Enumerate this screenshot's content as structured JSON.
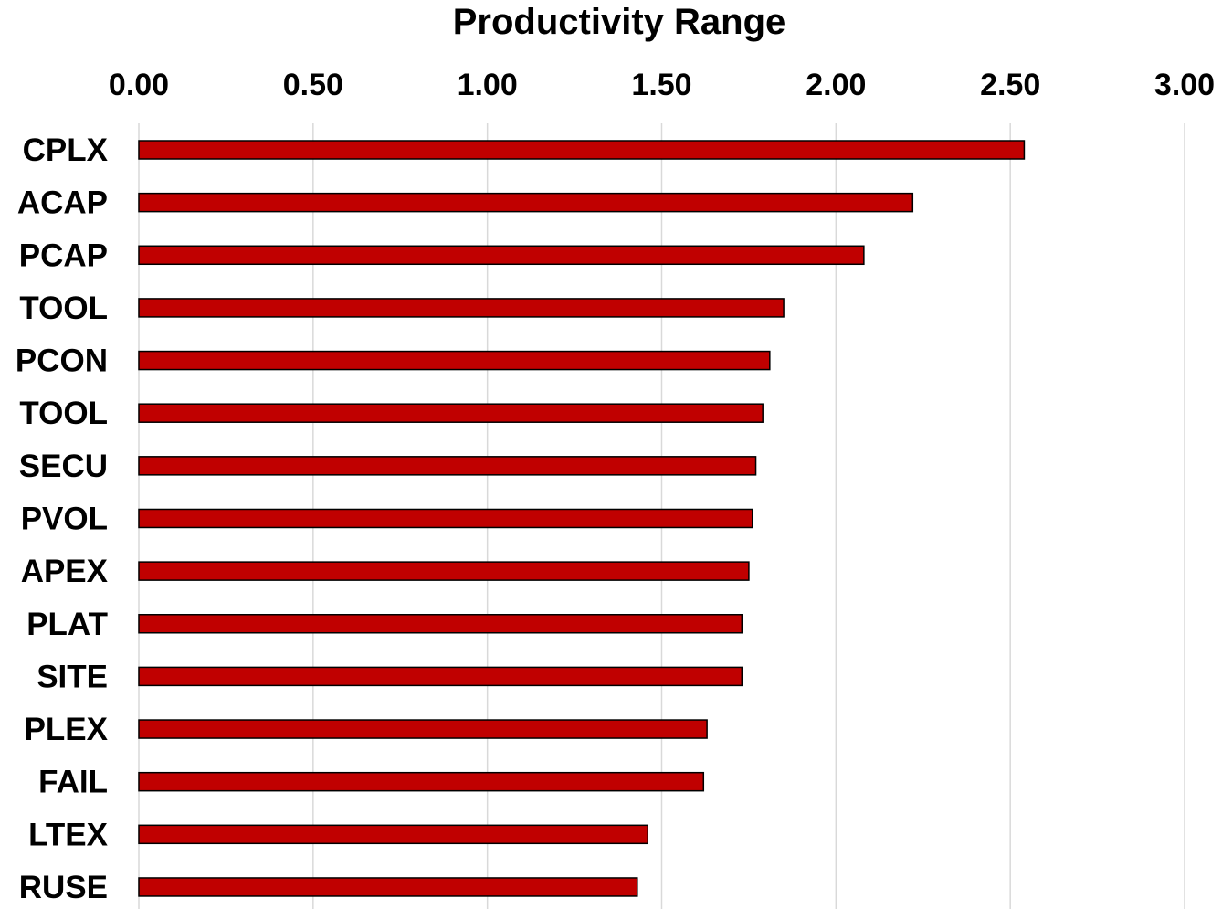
{
  "chart_data": {
    "type": "bar",
    "orientation": "horizontal",
    "title": "Productivity Range",
    "xlabel": "",
    "ylabel": "",
    "xlim": [
      0,
      3
    ],
    "x_ticks": [
      "0.00",
      "0.50",
      "1.00",
      "1.50",
      "2.00",
      "2.50",
      "3.00"
    ],
    "x_axis_position": "top",
    "grid": true,
    "legend": false,
    "bar_color": "#C00000",
    "bar_edge_color": "#000000",
    "grid_color": "#D9D9D9",
    "categories": [
      "CPLX",
      "ACAP",
      "PCAP",
      "TOOL",
      "PCON",
      "TOOL",
      "SECU",
      "PVOL",
      "APEX",
      "PLAT",
      "SITE",
      "PLEX",
      "FAIL",
      "LTEX",
      "RUSE"
    ],
    "values": [
      2.54,
      2.22,
      2.08,
      1.85,
      1.81,
      1.79,
      1.77,
      1.76,
      1.75,
      1.73,
      1.73,
      1.63,
      1.62,
      1.46,
      1.43
    ]
  }
}
